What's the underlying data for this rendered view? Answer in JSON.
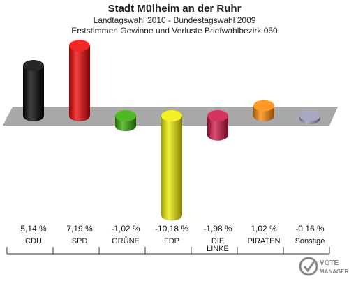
{
  "title": "Stadt Mülheim an der Ruhr",
  "subtitle1": "Landtagswahl 2010 - Bundestagswahl 2009",
  "subtitle2": "Erststimmen Gewinne und Verluste Briefwahlbezirk 050",
  "logo_text": "VOTE MANAGER",
  "chart_data": {
    "type": "bar",
    "categories": [
      "CDU",
      "SPD",
      "GRÜNE",
      "FDP",
      "DIE LINKE",
      "PIRATEN",
      "Sonstige"
    ],
    "values": [
      5.14,
      7.19,
      -1.02,
      -10.18,
      -1.98,
      1.02,
      -0.16
    ],
    "value_labels": [
      "5,14 %",
      "7,19 %",
      "-1,02 %",
      "-10,18 %",
      "-1,98 %",
      "1,02 %",
      "-0,16 %"
    ],
    "colors": [
      "#000000",
      "#ee0000",
      "#33aa00",
      "#eeee00",
      "#cc1144",
      "#ff8800",
      "#9999bb"
    ]
  }
}
